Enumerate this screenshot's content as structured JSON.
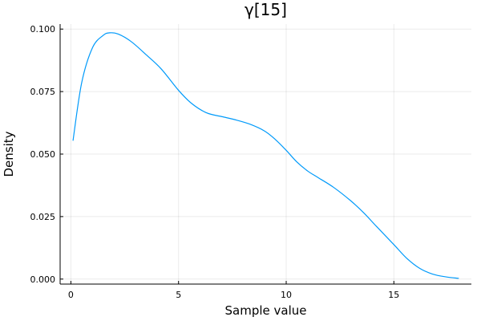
{
  "chart_data": {
    "type": "line",
    "title": "γ[15]",
    "xlabel": "Sample value",
    "ylabel": "Density",
    "xlim": [
      -0.5,
      18.6
    ],
    "ylim": [
      -0.002,
      0.102
    ],
    "xticks": [
      0,
      5,
      10,
      15
    ],
    "xtick_labels": [
      "0",
      "5",
      "10",
      "15"
    ],
    "yticks": [
      0.0,
      0.025,
      0.05,
      0.075,
      0.1
    ],
    "ytick_labels": [
      "0.000",
      "0.025",
      "0.050",
      "0.075",
      "0.100"
    ],
    "grid": true,
    "legend": false,
    "series": [
      {
        "color": "#009AFA",
        "x": [
          0.1,
          0.5,
          1.0,
          1.5,
          1.8,
          2.2,
          2.8,
          3.5,
          4.2,
          5.0,
          5.6,
          6.3,
          7.0,
          7.6,
          8.3,
          9.0,
          9.5,
          10.0,
          10.5,
          11.0,
          11.5,
          12.2,
          13.0,
          13.6,
          14.2,
          15.0,
          15.6,
          16.2,
          16.8,
          17.4,
          18.0
        ],
        "y": [
          0.0555,
          0.0785,
          0.0925,
          0.0975,
          0.0985,
          0.098,
          0.095,
          0.0897,
          0.084,
          0.0755,
          0.0703,
          0.0665,
          0.065,
          0.0638,
          0.062,
          0.0592,
          0.0558,
          0.0515,
          0.0468,
          0.0432,
          0.0405,
          0.0367,
          0.0313,
          0.0265,
          0.021,
          0.0138,
          0.0083,
          0.0043,
          0.002,
          0.0009,
          0.0003
        ]
      }
    ]
  }
}
